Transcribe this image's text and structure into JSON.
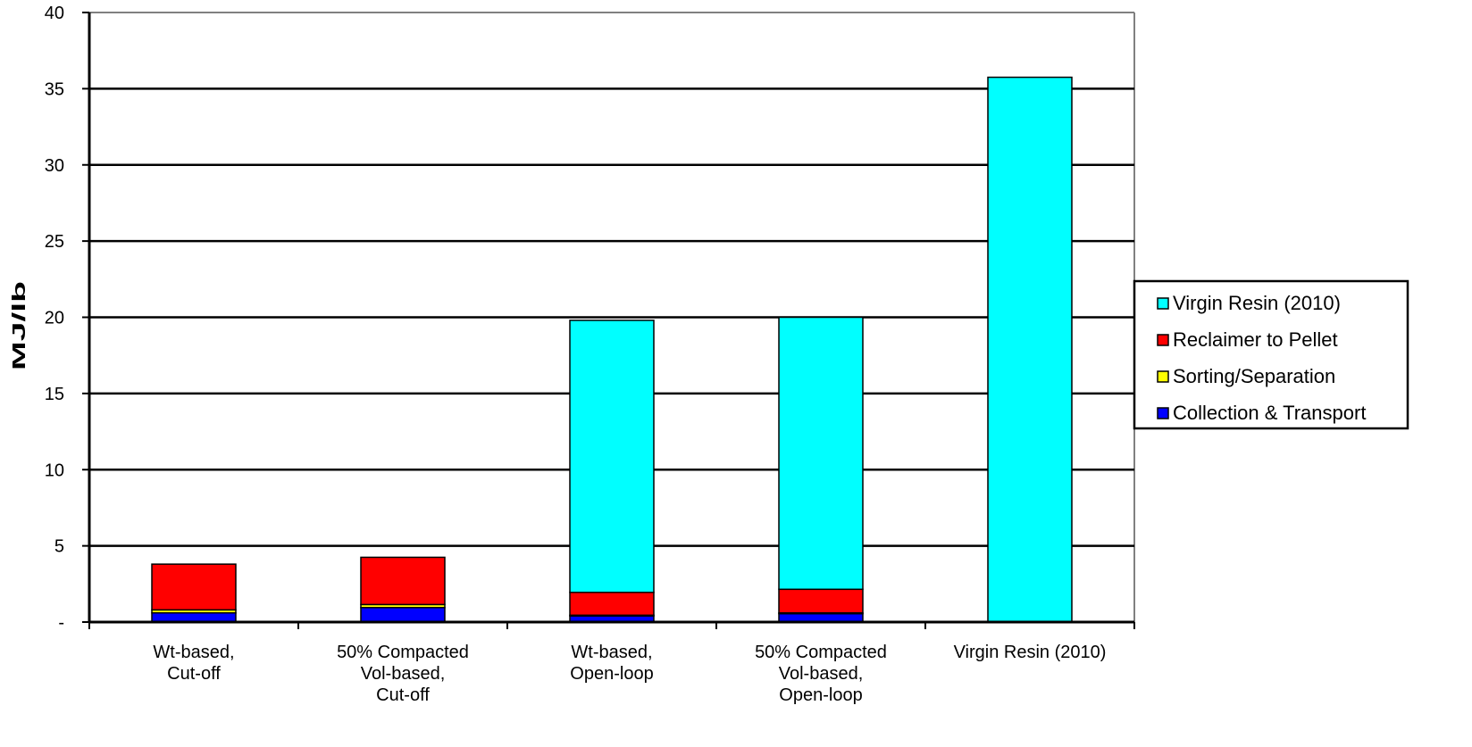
{
  "chart_data": {
    "type": "bar",
    "stacked": true,
    "title": "",
    "xlabel": "",
    "ylabel": "MJ/lb",
    "ylim": [
      0,
      40
    ],
    "yticks": [
      0,
      5,
      10,
      15,
      20,
      25,
      30,
      35,
      40
    ],
    "ytick_labels": [
      "-",
      "5",
      "10",
      "15",
      "20",
      "25",
      "30",
      "35",
      "40"
    ],
    "grid": true,
    "legend_position": "right",
    "categories": [
      [
        "Wt-based,",
        "Cut-off"
      ],
      [
        "50% Compacted",
        "Vol-based,",
        "Cut-off"
      ],
      [
        "Wt-based,",
        "Open-loop"
      ],
      [
        "50% Compacted",
        "Vol-based,",
        "Open-loop"
      ],
      [
        "Virgin Resin (2010)"
      ]
    ],
    "series": [
      {
        "name": "Collection & Transport",
        "color": "#0000ff",
        "values": [
          0.6,
          0.95,
          0.4,
          0.55,
          0
        ]
      },
      {
        "name": "Sorting/Separation",
        "color": "#ffff00",
        "values": [
          0.2,
          0.2,
          0.05,
          0.05,
          0
        ]
      },
      {
        "name": "Reclaimer to Pellet",
        "color": "#ff0000",
        "values": [
          3.0,
          3.1,
          1.5,
          1.55,
          0
        ]
      },
      {
        "name": "Virgin Resin (2010)",
        "color": "#00ffff",
        "values": [
          0,
          0,
          17.85,
          17.85,
          35.75
        ]
      }
    ],
    "legend_order": [
      "Virgin Resin (2010)",
      "Reclaimer to Pellet",
      "Sorting/Separation",
      "Collection & Transport"
    ]
  }
}
